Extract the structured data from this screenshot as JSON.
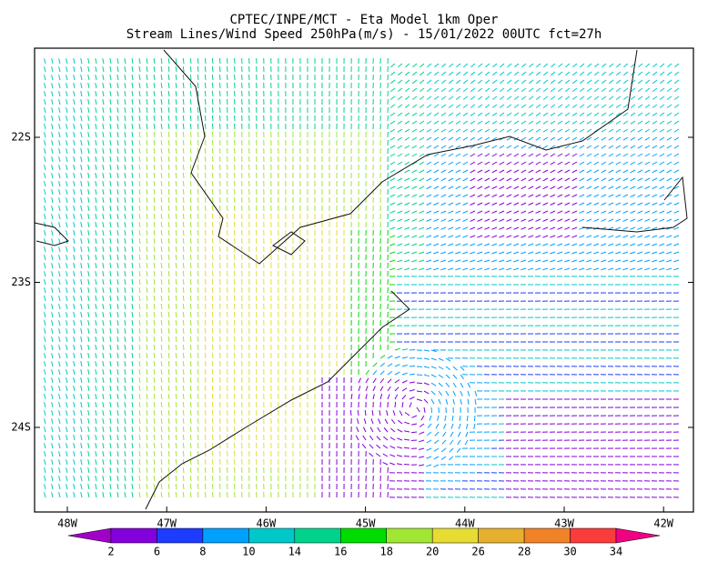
{
  "header": {
    "title_line_1": "CPTEC/INPE/MCT -  Eta Model 1km Oper",
    "title_line_2": "Stream Lines/Wind Speed 250hPa(m/s) - 15/01/2022 00UTC fct=27h"
  },
  "map": {
    "x_labels": [
      "48W",
      "47W",
      "46W",
      "45W",
      "44W",
      "43W",
      "42W"
    ],
    "y_labels": [
      "22S",
      "23S",
      "24S"
    ]
  },
  "colorbar": {
    "labels": [
      2,
      6,
      8,
      10,
      14,
      16,
      18,
      20,
      26,
      28,
      30,
      34
    ],
    "colors": [
      "#a000c8",
      "#8200dc",
      "#1e3cff",
      "#00a0ff",
      "#00c8c8",
      "#00d28c",
      "#00dc00",
      "#a0e632",
      "#e6dc32",
      "#e6af2d",
      "#f08228",
      "#fa3c3c",
      "#f00082"
    ]
  }
}
